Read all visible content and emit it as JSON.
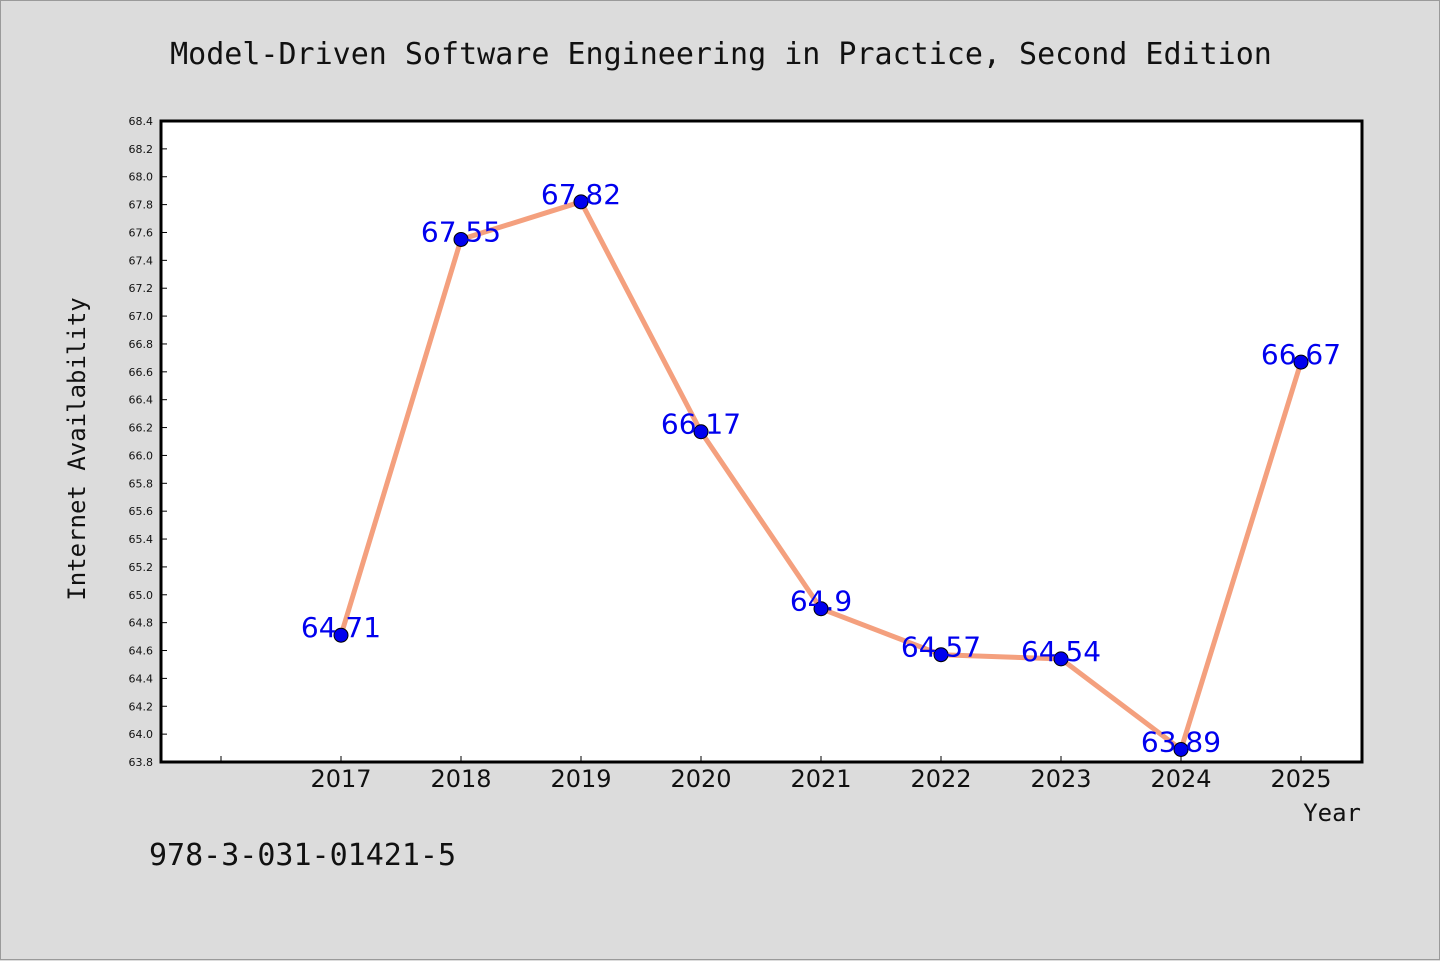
{
  "chart_data": {
    "type": "line",
    "title": "Model-Driven Software Engineering in Practice, Second Edition",
    "xlabel": "Year",
    "ylabel": "Internet Availability",
    "categories": [
      "2017",
      "2018",
      "2019",
      "2020",
      "2021",
      "2022",
      "2023",
      "2024",
      "2025"
    ],
    "series": [
      {
        "values": [
          64.71,
          67.55,
          67.82,
          66.17,
          64.9,
          64.57,
          64.54,
          63.89,
          66.67
        ],
        "data_labels": [
          "64.71",
          "67.55",
          "67.82",
          "66.17",
          "64.9",
          "64.57",
          "64.54",
          "63.89",
          "66.67"
        ],
        "line_color": "#f4a07e",
        "marker_color": "#0000ee"
      }
    ],
    "ylim": [
      63.8,
      68.4
    ],
    "yticks": [
      "63.8",
      "64.0",
      "64.2",
      "64.4",
      "64.6",
      "64.8",
      "65.0",
      "65.2",
      "65.4",
      "65.6",
      "65.8",
      "66.0",
      "66.2",
      "66.4",
      "66.6",
      "66.8",
      "67.0",
      "67.2",
      "67.4",
      "67.6",
      "67.8",
      "68.0",
      "68.2",
      "68.4"
    ],
    "grid": false,
    "legend": "none"
  },
  "footer": {
    "isbn": "978-3-031-01421-5"
  },
  "colors": {
    "background": "#dcdcdc",
    "plot_background": "#ffffff",
    "line": "#f4a07e",
    "marker": "#0000ee",
    "data_label": "#0000ee"
  }
}
